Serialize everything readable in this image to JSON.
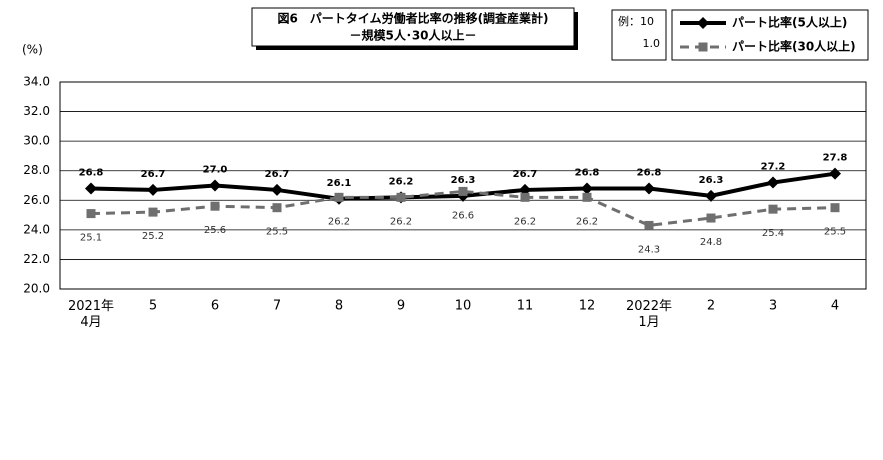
{
  "chart_data": {
    "type": "line",
    "title": "図6　パートタイム労働者比率の推移(調査産業計)",
    "subtitle": "－規模5人･30人以上－",
    "y_label": "(%)",
    "annotations": [
      "例：10",
      "1.0"
    ],
    "categories": [
      "2021年\n4月",
      "5",
      "6",
      "7",
      "8",
      "9",
      "10",
      "11",
      "12",
      "2022年\n1月",
      "2",
      "3",
      "4"
    ],
    "series": [
      {
        "name": "パート比率(5人以上)",
        "color": "#000000",
        "marker": "diamond",
        "dash": false,
        "values": [
          26.8,
          26.7,
          27.0,
          26.7,
          26.1,
          26.2,
          26.3,
          26.7,
          26.8,
          26.8,
          26.3,
          27.2,
          27.8
        ],
        "value_labels": [
          "26.8",
          "26.7",
          "27.0",
          "26.7",
          "26.1",
          "26.2",
          "26.3",
          "26.7",
          "26.8",
          "26.8",
          "26.3",
          "27.2",
          "27.8"
        ]
      },
      {
        "name": "パート比率(30人以上)",
        "color": "#6f6f6f",
        "marker": "square",
        "dash": true,
        "values": [
          25.1,
          25.2,
          25.6,
          25.5,
          26.2,
          26.2,
          26.6,
          26.2,
          26.2,
          24.3,
          24.8,
          25.4,
          25.5
        ]
      }
    ],
    "ylim": [
      20,
      34
    ],
    "yticks": [
      {
        "value": 20,
        "label": "20.0"
      },
      {
        "value": 22,
        "label": "22.0"
      },
      {
        "value": 24,
        "label": "24.0"
      },
      {
        "value": 26,
        "label": "26.0"
      },
      {
        "value": 28,
        "label": "28.0"
      },
      {
        "value": 30,
        "label": "30.0"
      },
      {
        "value": 32,
        "label": "32.0"
      },
      {
        "value": 34,
        "label": "34.0"
      }
    ],
    "grid": true
  }
}
